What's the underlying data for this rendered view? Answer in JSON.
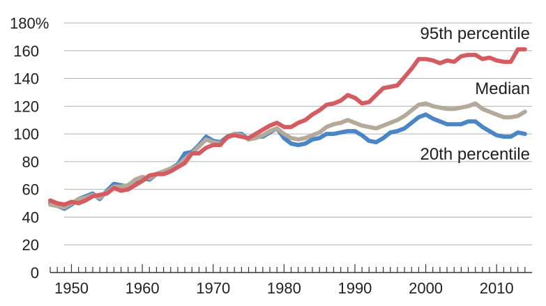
{
  "chart_data": {
    "type": "line",
    "title": "",
    "xlabel": "",
    "ylabel": "",
    "xlim": [
      1947,
      2015
    ],
    "ylim": [
      0,
      180
    ],
    "y_ticks": [
      0,
      20,
      40,
      60,
      80,
      100,
      120,
      140,
      160,
      180
    ],
    "y_tick_labels": [
      "0",
      "20",
      "40",
      "60",
      "80",
      "100",
      "120",
      "140",
      "160",
      "180%"
    ],
    "x_ticks": [
      1950,
      1960,
      1970,
      1980,
      1990,
      2000,
      2010
    ],
    "x_tick_labels": [
      "1950",
      "1960",
      "1970",
      "1980",
      "1990",
      "2000",
      "2010"
    ],
    "grid": "horizontal",
    "series": [
      {
        "name": "20th percentile",
        "color": "#4a86c5",
        "x": [
          1947,
          1948,
          1949,
          1950,
          1951,
          1952,
          1953,
          1954,
          1955,
          1956,
          1957,
          1958,
          1959,
          1960,
          1961,
          1962,
          1963,
          1964,
          1965,
          1966,
          1967,
          1968,
          1969,
          1970,
          1971,
          1972,
          1973,
          1974,
          1975,
          1976,
          1977,
          1978,
          1979,
          1980,
          1981,
          1982,
          1983,
          1984,
          1985,
          1986,
          1987,
          1988,
          1989,
          1990,
          1991,
          1992,
          1993,
          1994,
          1995,
          1996,
          1997,
          1998,
          1999,
          2000,
          2001,
          2002,
          2003,
          2004,
          2005,
          2006,
          2007,
          2008,
          2009,
          2010,
          2011,
          2012,
          2013,
          2014
        ],
        "values": [
          50,
          48,
          46,
          49,
          53,
          55,
          57,
          53,
          59,
          64,
          63,
          62,
          66,
          68,
          67,
          71,
          73,
          75,
          78,
          86,
          87,
          92,
          98,
          95,
          94,
          98,
          100,
          100,
          96,
          98,
          98,
          101,
          104,
          97,
          93,
          92,
          93,
          96,
          97,
          100,
          100,
          101,
          102,
          102,
          99,
          95,
          94,
          97,
          101,
          102,
          104,
          108,
          112,
          114,
          111,
          109,
          107,
          107,
          107,
          109,
          109,
          105,
          102,
          99,
          98,
          98,
          101,
          100
        ]
      },
      {
        "name": "Median",
        "color": "#b5a99a",
        "x": [
          1947,
          1948,
          1949,
          1950,
          1951,
          1952,
          1953,
          1954,
          1955,
          1956,
          1957,
          1958,
          1959,
          1960,
          1961,
          1962,
          1963,
          1964,
          1965,
          1966,
          1967,
          1968,
          1969,
          1970,
          1971,
          1972,
          1973,
          1974,
          1975,
          1976,
          1977,
          1978,
          1979,
          1980,
          1981,
          1982,
          1983,
          1984,
          1985,
          1986,
          1987,
          1988,
          1989,
          1990,
          1991,
          1992,
          1993,
          1994,
          1995,
          1996,
          1997,
          1998,
          1999,
          2000,
          2001,
          2002,
          2003,
          2004,
          2005,
          2006,
          2007,
          2008,
          2009,
          2010,
          2011,
          2012,
          2013,
          2014
        ],
        "values": [
          49,
          48,
          47,
          50,
          53,
          54,
          56,
          54,
          58,
          62,
          62,
          63,
          67,
          69,
          68,
          71,
          73,
          75,
          77,
          82,
          86,
          91,
          96,
          94,
          93,
          97,
          100,
          99,
          96,
          97,
          99,
          102,
          104,
          100,
          97,
          96,
          97,
          99,
          101,
          105,
          107,
          108,
          110,
          108,
          106,
          105,
          104,
          106,
          108,
          110,
          113,
          117,
          121,
          122,
          120,
          119,
          118,
          118,
          119,
          120,
          122,
          118,
          116,
          114,
          112,
          112,
          113,
          116
        ]
      },
      {
        "name": "95th percentile",
        "color": "#d45b60",
        "x": [
          1947,
          1948,
          1949,
          1950,
          1951,
          1952,
          1953,
          1954,
          1955,
          1956,
          1957,
          1958,
          1959,
          1960,
          1961,
          1962,
          1963,
          1964,
          1965,
          1966,
          1967,
          1968,
          1969,
          1970,
          1971,
          1972,
          1973,
          1974,
          1975,
          1976,
          1977,
          1978,
          1979,
          1980,
          1981,
          1982,
          1983,
          1984,
          1985,
          1986,
          1987,
          1988,
          1989,
          1990,
          1991,
          1992,
          1993,
          1994,
          1995,
          1996,
          1997,
          1998,
          1999,
          2000,
          2001,
          2002,
          2003,
          2004,
          2005,
          2006,
          2007,
          2008,
          2009,
          2010,
          2011,
          2012,
          2013,
          2014
        ],
        "values": [
          52,
          50,
          49,
          51,
          50,
          52,
          55,
          56,
          57,
          61,
          59,
          60,
          63,
          66,
          70,
          71,
          71,
          73,
          76,
          79,
          86,
          86,
          90,
          92,
          92,
          98,
          99,
          98,
          97,
          100,
          103,
          106,
          108,
          105,
          105,
          108,
          110,
          114,
          117,
          121,
          122,
          124,
          128,
          126,
          122,
          123,
          128,
          133,
          134,
          135,
          141,
          147,
          154,
          154,
          153,
          151,
          153,
          152,
          156,
          157,
          157,
          154,
          155,
          153,
          152,
          152,
          161,
          161
        ]
      }
    ],
    "annotations": [
      {
        "text": "95th percentile",
        "series": "95th percentile"
      },
      {
        "text": "Median",
        "series": "Median"
      },
      {
        "text": "20th percentile",
        "series": "20th percentile"
      }
    ]
  }
}
